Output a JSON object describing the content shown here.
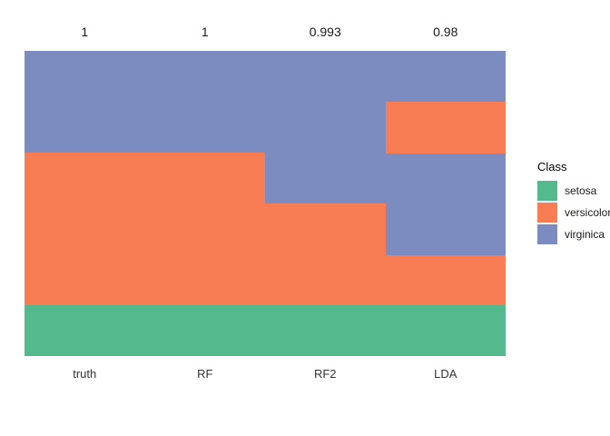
{
  "chart_data": {
    "type": "heatmap",
    "title": "",
    "description": "Predicted class per observation (stacked vertically) for the truth column and each model column; fill color encodes class",
    "legend": {
      "title": "Class",
      "position": "right"
    },
    "classes": [
      {
        "name": "setosa",
        "color": "#54b98c"
      },
      {
        "name": "versicolor",
        "color": "#f87d54"
      },
      {
        "name": "virginica",
        "color": "#7c8cc0"
      }
    ],
    "columns": [
      {
        "label": "truth",
        "score": "1",
        "segments": [
          {
            "class": "virginica",
            "fraction": 0.3333
          },
          {
            "class": "versicolor",
            "fraction": 0.5
          },
          {
            "class": "setosa",
            "fraction": 0.1667
          }
        ]
      },
      {
        "label": "RF",
        "score": "1",
        "segments": [
          {
            "class": "virginica",
            "fraction": 0.3333
          },
          {
            "class": "versicolor",
            "fraction": 0.5
          },
          {
            "class": "setosa",
            "fraction": 0.1667
          }
        ]
      },
      {
        "label": "RF2",
        "score": "0.993",
        "segments": [
          {
            "class": "virginica",
            "fraction": 0.5
          },
          {
            "class": "versicolor",
            "fraction": 0.3333
          },
          {
            "class": "setosa",
            "fraction": 0.1667
          }
        ]
      },
      {
        "label": "LDA",
        "score": "0.98",
        "segments": [
          {
            "class": "virginica",
            "fraction": 0.1667
          },
          {
            "class": "versicolor",
            "fraction": 0.1696
          },
          {
            "class": "virginica",
            "fraction": 0.3333
          },
          {
            "class": "versicolor",
            "fraction": 0.1637
          },
          {
            "class": "setosa",
            "fraction": 0.1667
          }
        ]
      }
    ]
  }
}
